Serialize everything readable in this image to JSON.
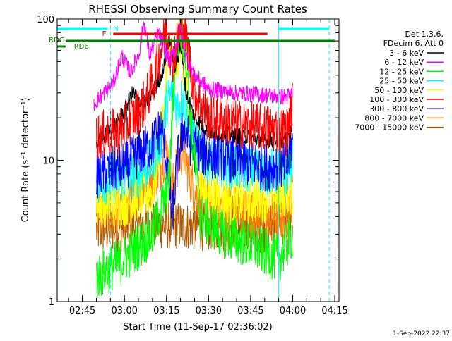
{
  "chart_data": {
    "type": "line",
    "title": "RHESSI Observing Summary Count Rates",
    "xlabel": "Start Time (11-Sep-17 02:36:02)",
    "ylabel": "Count Rate (s⁻¹ detector⁻¹)",
    "y_scale": "log",
    "ylim": [
      1,
      100
    ],
    "xlim": [
      "02:36:02",
      "04:16:30"
    ],
    "x_ticks": [
      "02:45",
      "03:00",
      "03:15",
      "03:30",
      "03:45",
      "04:00",
      "04:15"
    ],
    "y_ticks": [
      "1",
      "10",
      "100"
    ],
    "legend_header": [
      "Det 1,3,6,",
      "FDecim 6, Att 0"
    ],
    "legend_position": "right",
    "timestamp": "1-Sep-2022 22:37",
    "series": [
      {
        "name": "3 - 6 keV",
        "color": "#000000",
        "x": [
          "02:50",
          "02:58",
          "03:03",
          "03:07",
          "03:11",
          "03:14",
          "03:16",
          "03:18",
          "03:20",
          "03:22",
          "03:25",
          "03:30",
          "03:40",
          "03:50",
          "03:58",
          "04:00"
        ],
        "y": [
          13,
          19,
          30,
          24,
          32,
          45,
          75,
          45,
          65,
          30,
          20,
          16,
          15,
          14,
          14,
          18
        ]
      },
      {
        "name": "6 - 12 keV",
        "color": "#ff00ff",
        "x": [
          "02:49",
          "02:56",
          "02:59",
          "03:02",
          "03:05",
          "03:07",
          "03:09",
          "03:12",
          "03:14",
          "03:16",
          "03:18",
          "03:20",
          "03:22",
          "03:25",
          "03:30",
          "03:40",
          "03:50",
          "03:58",
          "04:00"
        ],
        "y": [
          25,
          35,
          55,
          42,
          55,
          95,
          55,
          80,
          65,
          50,
          60,
          85,
          55,
          40,
          32,
          30,
          29,
          28,
          30
        ]
      },
      {
        "name": "12 - 25 keV",
        "color": "#00ff00",
        "x": [
          "02:50",
          "03:00",
          "03:05",
          "03:10",
          "03:12",
          "03:14",
          "03:16",
          "03:18",
          "03:20",
          "03:22",
          "03:24",
          "03:27",
          "03:35",
          "03:45",
          "03:55",
          "04:00"
        ],
        "y": [
          1.5,
          2,
          2.5,
          3,
          4,
          5,
          7,
          50,
          80,
          60,
          15,
          4,
          3,
          2.5,
          2,
          3
        ]
      },
      {
        "name": "25 - 50 keV",
        "color": "#00ffff",
        "x": [
          "02:50",
          "03:00",
          "03:05",
          "03:10",
          "03:13",
          "03:15",
          "03:17",
          "03:19",
          "03:21",
          "03:23",
          "03:26",
          "03:30",
          "03:40",
          "03:50",
          "03:58",
          "04:00"
        ],
        "y": [
          7,
          7.5,
          8,
          10,
          14,
          25,
          30,
          24,
          28,
          18,
          12,
          10,
          9,
          8.5,
          8,
          11
        ]
      },
      {
        "name": "50 - 100 keV",
        "color": "#ffff00",
        "x": [
          "02:50",
          "03:00",
          "03:10",
          "03:14",
          "03:16",
          "03:18",
          "03:20",
          "03:22",
          "03:24",
          "03:28",
          "03:40",
          "04:00"
        ],
        "y": [
          5,
          5,
          6,
          20,
          70,
          40,
          70,
          35,
          12,
          6,
          5,
          6
        ]
      },
      {
        "name": "100 - 300 keV",
        "color": "#ff0000",
        "x": [
          "02:50",
          "02:58",
          "03:03",
          "03:07",
          "03:10",
          "03:13",
          "03:15",
          "03:17",
          "03:19",
          "03:21",
          "03:23",
          "03:25",
          "03:30",
          "03:40",
          "03:50",
          "03:58",
          "04:00"
        ],
        "y": [
          15,
          16,
          20,
          25,
          35,
          60,
          90,
          50,
          70,
          95,
          55,
          30,
          20,
          18,
          17,
          16,
          25
        ]
      },
      {
        "name": "300 - 800 keV",
        "color": "#0000ff",
        "x": [
          "02:50",
          "03:00",
          "03:05",
          "03:10",
          "03:13",
          "03:15",
          "03:17",
          "03:19",
          "03:21",
          "03:23",
          "03:25",
          "03:30",
          "03:40",
          "03:50",
          "03:58",
          "04:00"
        ],
        "y": [
          8,
          9,
          11,
          13,
          17,
          10,
          4,
          10,
          17,
          14,
          12,
          11,
          10,
          9,
          9,
          14
        ]
      },
      {
        "name": "800 - 7000 keV",
        "color": "#ff8000",
        "x": [
          "02:50",
          "03:00",
          "03:05",
          "03:10",
          "03:13",
          "03:15",
          "03:17",
          "03:19",
          "03:21",
          "03:23",
          "03:25",
          "03:30",
          "03:40",
          "03:50",
          "03:58",
          "04:00"
        ],
        "y": [
          4,
          4.5,
          6,
          7,
          9,
          12,
          6,
          10,
          12,
          8,
          6,
          5,
          4.5,
          4,
          4,
          6
        ]
      },
      {
        "name": "7000 - 15000 keV",
        "color": "#b05800",
        "x": [
          "02:50",
          "03:10",
          "03:30",
          "03:50",
          "04:00"
        ],
        "y": [
          3.2,
          3.5,
          3.4,
          3.3,
          4
        ]
      }
    ],
    "flag_bars": [
      {
        "label": "N",
        "color": "#00ffff",
        "segments": [
          [
            "02:36",
            "02:54"
          ],
          [
            "03:55",
            "04:13"
          ]
        ]
      },
      {
        "label": "F",
        "color": "#ff0000",
        "segments": [
          [
            "02:56",
            "03:51"
          ]
        ]
      },
      {
        "label": "RDC",
        "color": "#008000",
        "segments": [
          [
            "02:39",
            "03:07"
          ],
          [
            "03:07",
            "03:29"
          ],
          [
            "03:29",
            "03:55"
          ],
          [
            "03:55",
            "04:15"
          ]
        ]
      },
      {
        "label": "RD6",
        "color": "#008000",
        "segments": [
          [
            "02:36",
            "02:39"
          ]
        ]
      }
    ],
    "markers": [
      {
        "style": "solid",
        "color": "#00ffff",
        "x": [
          "02:36",
          "03:55"
        ]
      },
      {
        "style": "dashed",
        "color": "#00ffff",
        "x": [
          "02:55",
          "04:13"
        ]
      }
    ]
  }
}
